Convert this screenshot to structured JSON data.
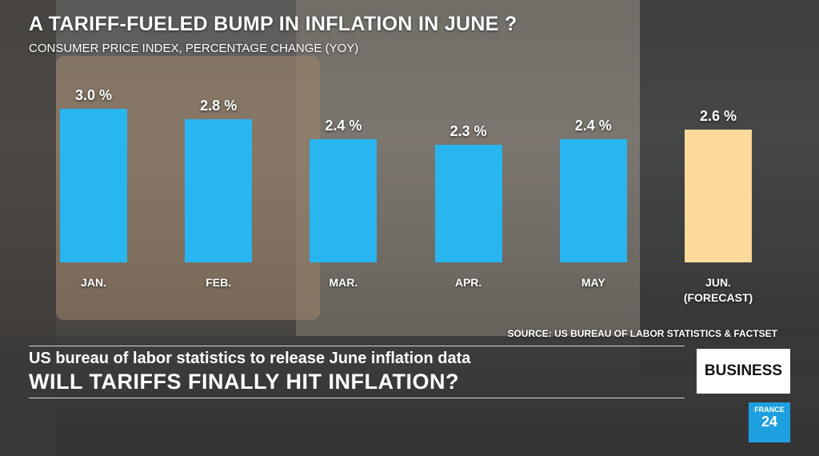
{
  "chart_data": {
    "type": "bar",
    "title": "A TARIFF-FUELED BUMP IN INFLATION IN JUNE ?",
    "subtitle": "CONSUMER PRICE INDEX, PERCENTAGE CHANGE (YOY)",
    "categories": [
      "JAN.",
      "FEB.",
      "MAR.",
      "APR.",
      "MAY",
      "JUN. (FORECAST)"
    ],
    "values": [
      3.0,
      2.8,
      2.4,
      2.3,
      2.4,
      2.6
    ],
    "value_labels": [
      "3.0 %",
      "2.8 %",
      "2.4 %",
      "2.3 %",
      "2.4 %",
      "2.6 %"
    ],
    "colors": [
      "#29b5ef",
      "#29b5ef",
      "#29b5ef",
      "#29b5ef",
      "#29b5ef",
      "#fdd99b"
    ],
    "ylim": [
      0,
      3
    ],
    "source": "SOURCE: US BUREAU OF LABOR STATISTICS & FACTSET"
  },
  "banner": {
    "line1": "US bureau of labor statistics to release June inflation data",
    "headline": "WILL TARIFFS FINALLY HIT INFLATION?",
    "tag": "BUSINESS"
  },
  "logo": {
    "line1": "FRANCE",
    "line2": "24"
  }
}
